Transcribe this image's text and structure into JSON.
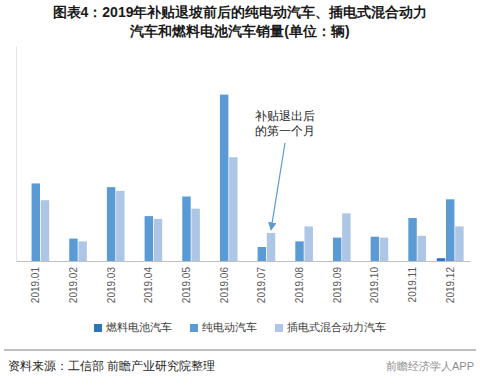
{
  "chart_data": {
    "type": "bar",
    "title": [
      "图表4：2019年补贴退坡前后的纯电动汽车、插电式混合动力",
      "汽车和燃料电池汽车销量(单位：辆)"
    ],
    "categories": [
      "2019.01",
      "2019.02",
      "2019.03",
      "2019.04",
      "2019.05",
      "2019.06",
      "2019.07",
      "2019.08",
      "2019.09",
      "2019.10",
      "2019.11",
      "2019.12"
    ],
    "series": [
      {
        "name": "燃料电池汽车",
        "color": "#2e75b6",
        "values": [
          0,
          0,
          0,
          0,
          0,
          0,
          0,
          0,
          0,
          0,
          0,
          3000
        ]
      },
      {
        "name": "纯电动汽车",
        "color": "#5b9bd5",
        "values": [
          83000,
          24000,
          79000,
          48000,
          69000,
          178000,
          15000,
          21000,
          25000,
          26000,
          46000,
          66000
        ]
      },
      {
        "name": "插电式混合动力汽车",
        "color": "#adc6e5",
        "values": [
          65000,
          21000,
          75000,
          45000,
          56000,
          111000,
          30000,
          37000,
          51000,
          25000,
          27000,
          37000
        ]
      }
    ],
    "ylim": [
      0,
      230000
    ],
    "tick_labels": "x",
    "grid": false,
    "legend": "bottom",
    "annotations": [
      {
        "text": [
          "补贴退出后",
          "的第一个月"
        ],
        "category": "2019.07",
        "series": "插电式混合动力汽车"
      }
    ],
    "source": "资料来源：工信部 前瞻产业研究院整理",
    "watermark": "前瞻经济学人APP"
  }
}
